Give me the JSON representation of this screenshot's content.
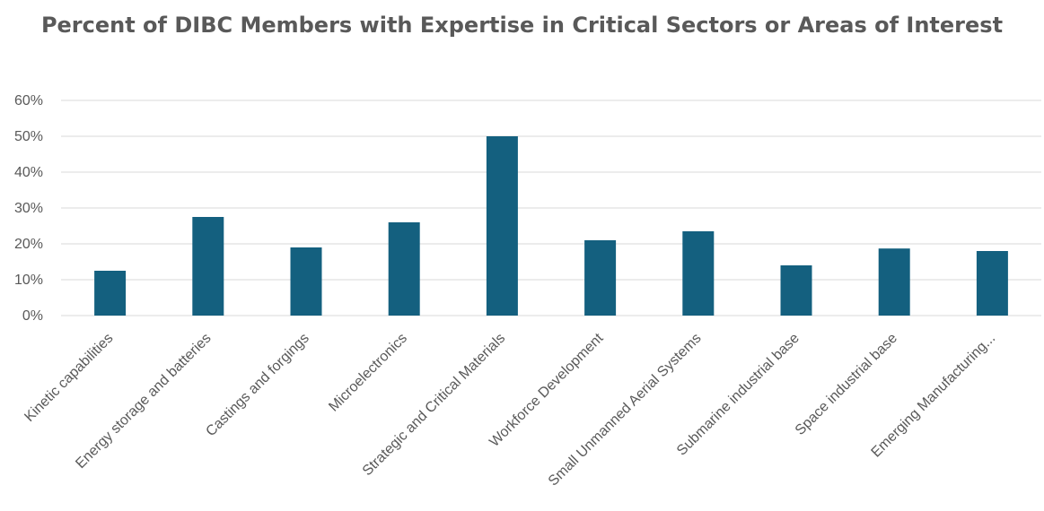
{
  "chart_data": {
    "type": "bar",
    "title": "Percent of DIBC Members with Expertise in Critical Sectors or Areas of Interest",
    "xlabel": "",
    "ylabel": "",
    "ylim": [
      0,
      60
    ],
    "y_ticks": [
      "0%",
      "10%",
      "20%",
      "30%",
      "40%",
      "50%",
      "60%"
    ],
    "y_tick_values": [
      0,
      10,
      20,
      30,
      40,
      50,
      60
    ],
    "grid": true,
    "categories": [
      "Kinetic capabilities",
      "Energy storage and batteries",
      "Castings and forgings",
      "Microelectronics",
      "Strategic and Critical Materials",
      "Workforce Development",
      "Small Unmanned Aerial Systems",
      "Submarine industrial base",
      "Space industrial base",
      "Emerging Manufacturing..."
    ],
    "values": [
      12.5,
      27.5,
      19,
      26,
      50,
      21,
      23.5,
      14,
      18.7,
      18
    ],
    "bar_color": "#14607f",
    "grid_color": "#d9d9d9",
    "text_color": "#595959"
  }
}
